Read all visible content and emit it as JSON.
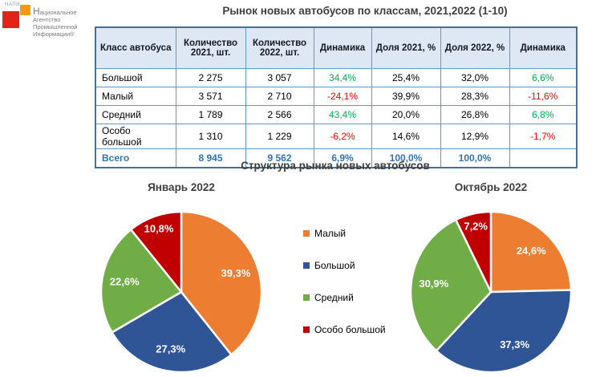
{
  "logo": {
    "acronym": "НАПИ",
    "lines": [
      "Национальное",
      "Агентство",
      "Промышленной",
      "Информации®"
    ],
    "red_square_color": "#e2231a",
    "orange_square_color": "#f49b13"
  },
  "title": "Рынок новых автобусов по классам, 2021,2022 (1-10)",
  "table": {
    "headers": [
      "Класс автобуса",
      "Количество 2021, шт.",
      "Количество 2022, шт.",
      "Динамика",
      "Доля 2021, %",
      "Доля 2022, %",
      "Динамика"
    ],
    "rows": [
      {
        "class": "Большой",
        "qty2021": "2 275",
        "qty2022": "3 057",
        "dyn_qty": "34,4%",
        "share2021": "25,4%",
        "share2022": "32,0%",
        "dyn_share": "6,6%"
      },
      {
        "class": "Малый",
        "qty2021": "3 571",
        "qty2022": "2 710",
        "dyn_qty": "-24,1%",
        "share2021": "39,9%",
        "share2022": "28,3%",
        "dyn_share": "-11,6%"
      },
      {
        "class": "Средний",
        "qty2021": "1 789",
        "qty2022": "2 566",
        "dyn_qty": "43,4%",
        "share2021": "20,0%",
        "share2022": "26,8%",
        "dyn_share": "6,8%"
      },
      {
        "class": "Особо большой",
        "qty2021": "1 310",
        "qty2022": "1 229",
        "dyn_qty": "-6,2%",
        "share2021": "14,6%",
        "share2022": "12,9%",
        "dyn_share": "-1,7%"
      }
    ],
    "total": {
      "class": "Всего",
      "qty2021": "8 945",
      "qty2022": "9 562",
      "dyn_qty": "6,9%",
      "share2021": "100,0%",
      "share2022": "100,0%",
      "dyn_share": ""
    }
  },
  "charts_section": {
    "title": "Структура рынка новых автобусов"
  },
  "legend": [
    {
      "label": "Малый",
      "color": "#ED7D31"
    },
    {
      "label": "Большой",
      "color": "#2F5597"
    },
    {
      "label": "Средний",
      "color": "#70AD47"
    },
    {
      "label": "Особо большой",
      "color": "#C00000"
    }
  ],
  "chart_data": [
    {
      "type": "pie",
      "title": "Январь 2022",
      "labels": [
        "Малый",
        "Большой",
        "Средний",
        "Особо большой"
      ],
      "values": [
        39.3,
        27.3,
        22.6,
        10.8
      ],
      "value_labels": [
        "39,3%",
        "27,3%",
        "22,6%",
        "10,8%"
      ],
      "colors": [
        "#ED7D31",
        "#2F5597",
        "#70AD47",
        "#C00000"
      ],
      "legend_position": "right-of-chart"
    },
    {
      "type": "pie",
      "title": "Октябрь 2022",
      "labels": [
        "Малый",
        "Большой",
        "Средний",
        "Особо большой"
      ],
      "values": [
        24.6,
        37.3,
        30.9,
        7.2
      ],
      "value_labels": [
        "24,6%",
        "37,3%",
        "30,9%",
        "7,2%"
      ],
      "colors": [
        "#ED7D31",
        "#2F5597",
        "#70AD47",
        "#C00000"
      ],
      "legend_position": "left-of-chart"
    }
  ],
  "status_colors": {
    "positive": "#00B050",
    "negative": "#FF0000",
    "total_text": "#2E74B5",
    "table_border": "#5B9BD5",
    "header_bg": "#DEE8F4"
  }
}
